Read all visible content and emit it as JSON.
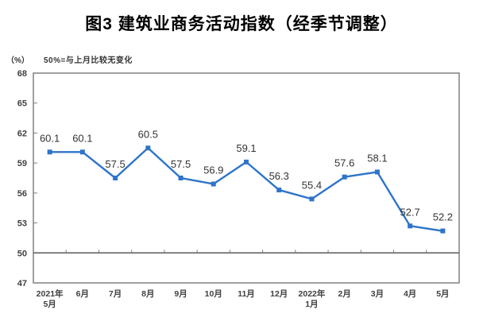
{
  "page": {
    "title": "图3 建筑业商务活动指数（经季节调整）",
    "unit_label": "（%）",
    "axis_note": "50%=与上月比较无变化"
  },
  "chart_data": {
    "type": "line",
    "title": "图3 建筑业商务活动指数（经季节调整）",
    "unit": "%",
    "note": "50%=与上月比较无变化",
    "categories": [
      "2021年5月",
      "6月",
      "7月",
      "8月",
      "9月",
      "10月",
      "11月",
      "12月",
      "2022年1月",
      "2月",
      "3月",
      "4月",
      "5月"
    ],
    "category_lines": [
      [
        "2021年",
        "5月"
      ],
      [
        "6月"
      ],
      [
        "7月"
      ],
      [
        "8月"
      ],
      [
        "9月"
      ],
      [
        "10月"
      ],
      [
        "11月"
      ],
      [
        "12月"
      ],
      [
        "2022年",
        "1月"
      ],
      [
        "2月"
      ],
      [
        "3月"
      ],
      [
        "4月"
      ],
      [
        "5月"
      ]
    ],
    "series": [
      {
        "name": "建筑业商务活动指数",
        "values": [
          60.1,
          60.1,
          57.5,
          60.5,
          57.5,
          56.9,
          59.1,
          56.3,
          55.4,
          57.6,
          58.1,
          52.7,
          52.2
        ]
      }
    ],
    "data_labels": [
      "60.1",
      "60.1",
      "57.5",
      "60.5",
      "57.5",
      "56.9",
      "59.1",
      "56.3",
      "55.4",
      "57.6",
      "58.1",
      "52.7",
      "52.2"
    ],
    "ylim": [
      47,
      68
    ],
    "yticks": [
      47,
      50,
      53,
      56,
      59,
      62,
      65,
      68
    ],
    "reference_line": 50,
    "grid": false,
    "legend": "none",
    "marker": "square",
    "colors": {
      "line": "#2E74C9",
      "marker": "#2E74C9",
      "plot_border": "#808080",
      "reference_line": "#595959",
      "tick": "#808080",
      "text": "#404040",
      "data_label": "#333333"
    }
  }
}
